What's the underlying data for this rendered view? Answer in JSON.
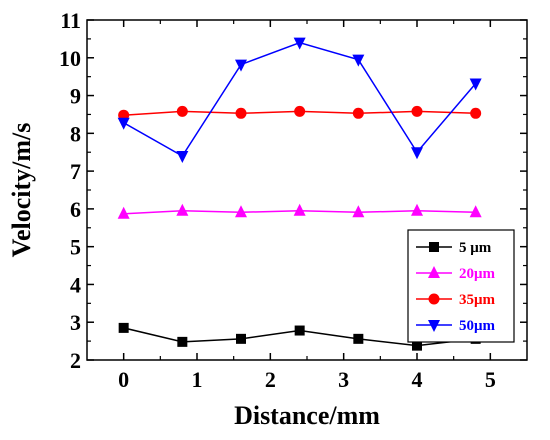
{
  "chart_data": {
    "type": "line",
    "xlabel": "Distance/mm",
    "ylabel": "Velocity/m/s",
    "xlim": [
      -0.5,
      5.5
    ],
    "ylim": [
      2,
      11
    ],
    "x_ticks": [
      "0",
      "1",
      "2",
      "3",
      "4",
      "5"
    ],
    "y_ticks": [
      "2",
      "3",
      "4",
      "5",
      "6",
      "7",
      "8",
      "9",
      "10",
      "11"
    ],
    "grid": false,
    "legend_position": "bottom-right",
    "series": [
      {
        "name": "5 μm",
        "color": "#000000",
        "marker": "square",
        "x": [
          0,
          0.8,
          1.6,
          2.4,
          3.2,
          4.0,
          4.8
        ],
        "y": [
          2.85,
          2.48,
          2.56,
          2.78,
          2.56,
          2.38,
          2.56
        ]
      },
      {
        "name": "20μm",
        "color": "#ff00ff",
        "marker": "triangle-up",
        "x": [
          0,
          0.8,
          1.6,
          2.4,
          3.2,
          4.0,
          4.8
        ],
        "y": [
          5.87,
          5.95,
          5.91,
          5.95,
          5.91,
          5.95,
          5.91
        ]
      },
      {
        "name": "35μm",
        "color": "#ff0000",
        "marker": "circle",
        "x": [
          0,
          0.8,
          1.6,
          2.4,
          3.2,
          4.0,
          4.8
        ],
        "y": [
          8.48,
          8.58,
          8.53,
          8.58,
          8.53,
          8.58,
          8.53
        ]
      },
      {
        "name": "50μm",
        "color": "#0000ff",
        "marker": "triangle-down",
        "x": [
          0,
          0.8,
          1.6,
          2.4,
          3.2,
          4.0,
          4.8
        ],
        "y": [
          8.28,
          7.4,
          9.82,
          10.4,
          9.95,
          7.5,
          9.32
        ]
      }
    ]
  }
}
